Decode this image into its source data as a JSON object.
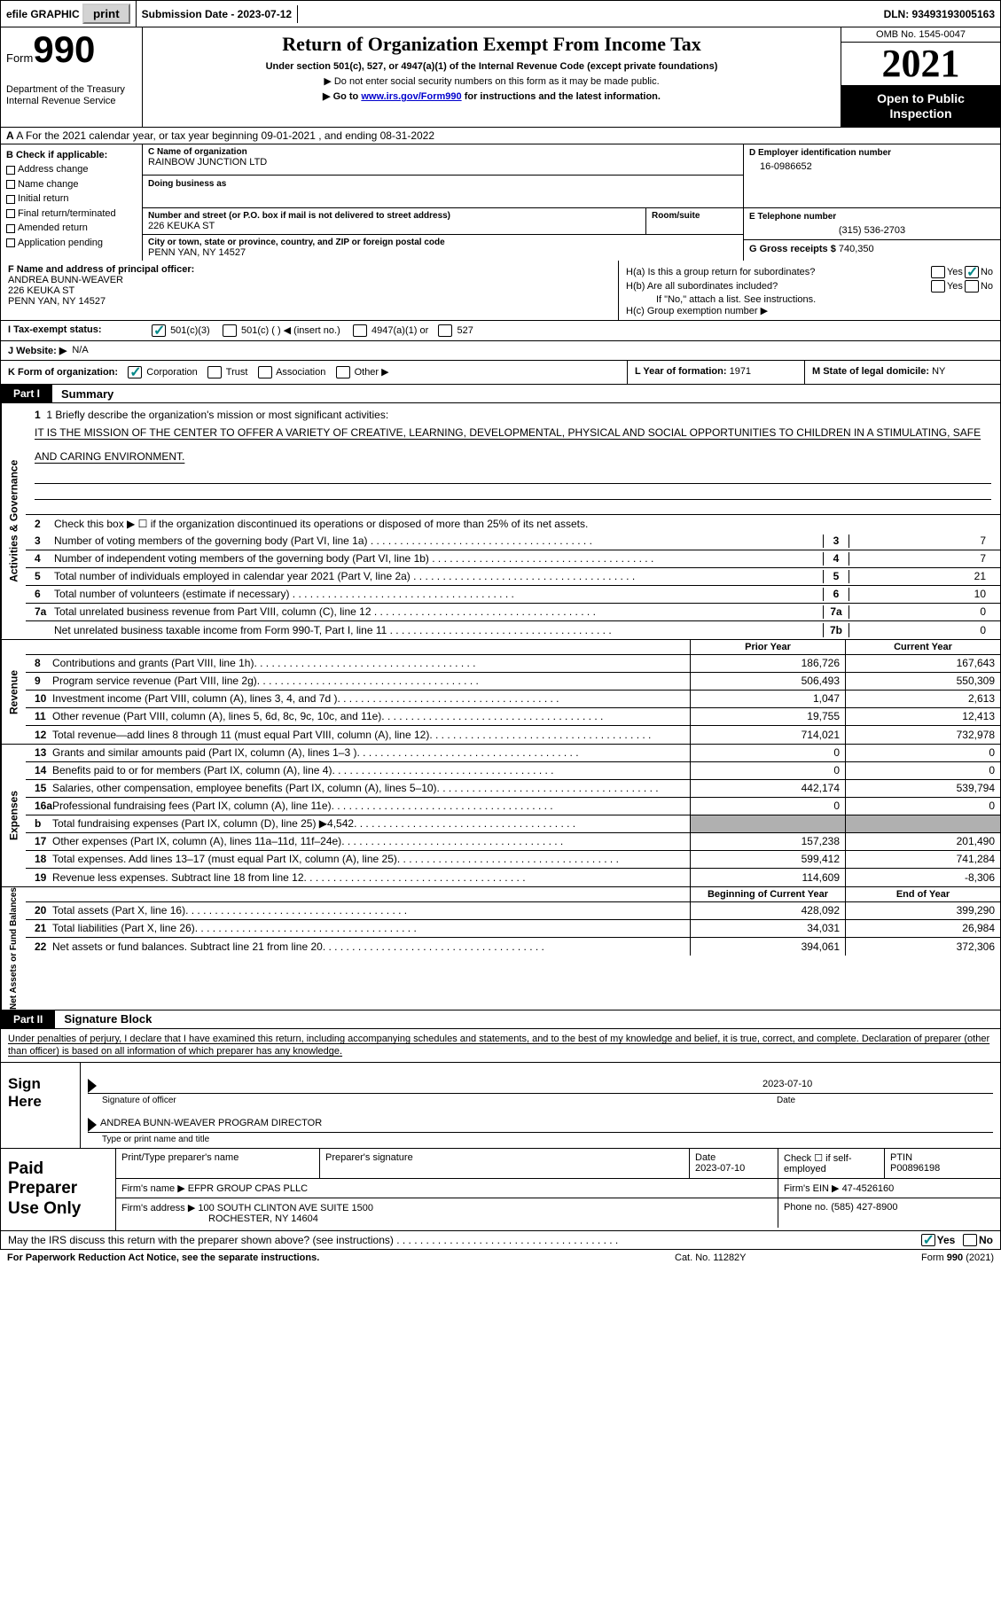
{
  "topbar": {
    "efile": "efile GRAPHIC",
    "print": "print",
    "submission": "Submission Date - 2023-07-12",
    "dln": "DLN: 93493193005163"
  },
  "header": {
    "form_word": "Form",
    "form_num": "990",
    "dept": "Department of the Treasury\nInternal Revenue Service",
    "title": "Return of Organization Exempt From Income Tax",
    "sub": "Under section 501(c), 527, or 4947(a)(1) of the Internal Revenue Code (except private foundations)",
    "note1": "▶ Do not enter social security numbers on this form as it may be made public.",
    "link_pre": "▶ Go to ",
    "link": "www.irs.gov/Form990",
    "link_post": " for instructions and the latest information.",
    "omb": "OMB No. 1545-0047",
    "year": "2021",
    "openpub": "Open to Public Inspection"
  },
  "lineA": "A For the 2021 calendar year, or tax year beginning 09-01-2021    , and ending 08-31-2022",
  "B": {
    "label": "B Check if applicable:",
    "opts": [
      "Address change",
      "Name change",
      "Initial return",
      "Final return/terminated",
      "Amended return",
      "Application pending"
    ]
  },
  "C": {
    "name_label": "C Name of organization",
    "name": "RAINBOW JUNCTION LTD",
    "dba_label": "Doing business as",
    "street_label": "Number and street (or P.O. box if mail is not delivered to street address)",
    "room_label": "Room/suite",
    "street": "226 KEUKA ST",
    "city_label": "City or town, state or province, country, and ZIP or foreign postal code",
    "city": "PENN YAN, NY  14527"
  },
  "D": {
    "label": "D Employer identification number",
    "value": "16-0986652"
  },
  "E": {
    "label": "E Telephone number",
    "value": "(315) 536-2703"
  },
  "G": {
    "label": "G Gross receipts $",
    "value": "740,350"
  },
  "F": {
    "label": "F  Name and address of principal officer:",
    "name": "ANDREA BUNN-WEAVER",
    "line2": "226 KEUKA ST",
    "line3": "PENN YAN, NY  14527"
  },
  "H": {
    "a": "H(a)  Is this a group return for subordinates?",
    "b": "H(b)  Are all subordinates included?",
    "bnote": "If \"No,\" attach a list. See instructions.",
    "c": "H(c)  Group exemption number ▶"
  },
  "I": {
    "label": "I  Tax-exempt status:",
    "o1": "501(c)(3)",
    "o2": "501(c) (  ) ◀ (insert no.)",
    "o3": "4947(a)(1) or",
    "o4": "527"
  },
  "J": {
    "label": "J  Website: ▶",
    "value": "N/A"
  },
  "K": {
    "label": "K Form of organization:",
    "opts": [
      "Corporation",
      "Trust",
      "Association",
      "Other ▶"
    ]
  },
  "L": {
    "label": "L Year of formation:",
    "value": "1971"
  },
  "M": {
    "label": "M State of legal domicile:",
    "value": "NY"
  },
  "part1": {
    "tag": "Part I",
    "title": "Summary",
    "q1_label": "1  Briefly describe the organization's mission or most significant activities:",
    "mission": "IT IS THE MISSION OF THE CENTER TO OFFER A VARIETY OF CREATIVE, LEARNING, DEVELOPMENTAL, PHYSICAL AND SOCIAL OPPORTUNITIES TO CHILDREN IN A STIMULATING, SAFE AND CARING ENVIRONMENT.",
    "q2": "Check this box ▶ ☐ if the organization discontinued its operations or disposed of more than 25% of its net assets.",
    "lines": [
      {
        "n": "3",
        "t": "Number of voting members of the governing body (Part VI, line 1a)",
        "box": "3",
        "v": "7"
      },
      {
        "n": "4",
        "t": "Number of independent voting members of the governing body (Part VI, line 1b)",
        "box": "4",
        "v": "7"
      },
      {
        "n": "5",
        "t": "Total number of individuals employed in calendar year 2021 (Part V, line 2a)",
        "box": "5",
        "v": "21"
      },
      {
        "n": "6",
        "t": "Total number of volunteers (estimate if necessary)",
        "box": "6",
        "v": "10"
      },
      {
        "n": "7a",
        "t": "Total unrelated business revenue from Part VIII, column (C), line 12",
        "box": "7a",
        "v": "0"
      },
      {
        "n": "",
        "t": "Net unrelated business taxable income from Form 990-T, Part I, line 11",
        "box": "7b",
        "v": "0"
      }
    ],
    "vtab1": "Activities & Governance",
    "vtab2": "Revenue",
    "vtab3": "Expenses",
    "vtab4": "Net Assets or Fund Balances",
    "col_prior": "Prior Year",
    "col_curr": "Current Year",
    "rev": [
      {
        "n": "8",
        "t": "Contributions and grants (Part VIII, line 1h)",
        "p": "186,726",
        "c": "167,643"
      },
      {
        "n": "9",
        "t": "Program service revenue (Part VIII, line 2g)",
        "p": "506,493",
        "c": "550,309"
      },
      {
        "n": "10",
        "t": "Investment income (Part VIII, column (A), lines 3, 4, and 7d )",
        "p": "1,047",
        "c": "2,613"
      },
      {
        "n": "11",
        "t": "Other revenue (Part VIII, column (A), lines 5, 6d, 8c, 9c, 10c, and 11e)",
        "p": "19,755",
        "c": "12,413"
      },
      {
        "n": "12",
        "t": "Total revenue—add lines 8 through 11 (must equal Part VIII, column (A), line 12)",
        "p": "714,021",
        "c": "732,978"
      }
    ],
    "exp": [
      {
        "n": "13",
        "t": "Grants and similar amounts paid (Part IX, column (A), lines 1–3 )",
        "p": "0",
        "c": "0"
      },
      {
        "n": "14",
        "t": "Benefits paid to or for members (Part IX, column (A), line 4)",
        "p": "0",
        "c": "0"
      },
      {
        "n": "15",
        "t": "Salaries, other compensation, employee benefits (Part IX, column (A), lines 5–10)",
        "p": "442,174",
        "c": "539,794"
      },
      {
        "n": "16a",
        "t": "Professional fundraising fees (Part IX, column (A), line 11e)",
        "p": "0",
        "c": "0"
      },
      {
        "n": "b",
        "t": "Total fundraising expenses (Part IX, column (D), line 25) ▶4,542",
        "p": "",
        "c": "",
        "shade": true
      },
      {
        "n": "17",
        "t": "Other expenses (Part IX, column (A), lines 11a–11d, 11f–24e)",
        "p": "157,238",
        "c": "201,490"
      },
      {
        "n": "18",
        "t": "Total expenses. Add lines 13–17 (must equal Part IX, column (A), line 25)",
        "p": "599,412",
        "c": "741,284"
      },
      {
        "n": "19",
        "t": "Revenue less expenses. Subtract line 18 from line 12",
        "p": "114,609",
        "c": "-8,306"
      }
    ],
    "col_begin": "Beginning of Current Year",
    "col_end": "End of Year",
    "net": [
      {
        "n": "20",
        "t": "Total assets (Part X, line 16)",
        "p": "428,092",
        "c": "399,290"
      },
      {
        "n": "21",
        "t": "Total liabilities (Part X, line 26)",
        "p": "34,031",
        "c": "26,984"
      },
      {
        "n": "22",
        "t": "Net assets or fund balances. Subtract line 21 from line 20",
        "p": "394,061",
        "c": "372,306"
      }
    ]
  },
  "part2": {
    "tag": "Part II",
    "title": "Signature Block",
    "decl": "Under penalties of perjury, I declare that I have examined this return, including accompanying schedules and statements, and to the best of my knowledge and belief, it is true, correct, and complete. Declaration of preparer (other than officer) is based on all information of which preparer has any knowledge.",
    "sign_here": "Sign Here",
    "sig_of_officer": "Signature of officer",
    "sig_date": "2023-07-10",
    "date_lbl": "Date",
    "officer_name": "ANDREA BUNN-WEAVER  PROGRAM DIRECTOR",
    "type_name": "Type or print name and title",
    "paid_label": "Paid Preparer Use Only",
    "prep_name_lbl": "Print/Type preparer's name",
    "prep_sig_lbl": "Preparer's signature",
    "prep_date_lbl": "Date",
    "prep_date": "2023-07-10",
    "self_emp": "Check ☐ if self-employed",
    "ptin_lbl": "PTIN",
    "ptin": "P00896198",
    "firm_name_lbl": "Firm's name    ▶",
    "firm_name": "EFPR GROUP CPAS PLLC",
    "firm_ein_lbl": "Firm's EIN ▶",
    "firm_ein": "47-4526160",
    "firm_addr_lbl": "Firm's address ▶",
    "firm_addr": "100 SOUTH CLINTON AVE SUITE 1500",
    "firm_city": "ROCHESTER, NY  14604",
    "phone_lbl": "Phone no.",
    "phone": "(585) 427-8900"
  },
  "discuss": "May the IRS discuss this return with the preparer shown above? (see instructions)",
  "footer": {
    "left": "For Paperwork Reduction Act Notice, see the separate instructions.",
    "mid": "Cat. No. 11282Y",
    "right": "Form 990 (2021)"
  },
  "yes": "Yes",
  "no": "No",
  "b_letter": "b"
}
